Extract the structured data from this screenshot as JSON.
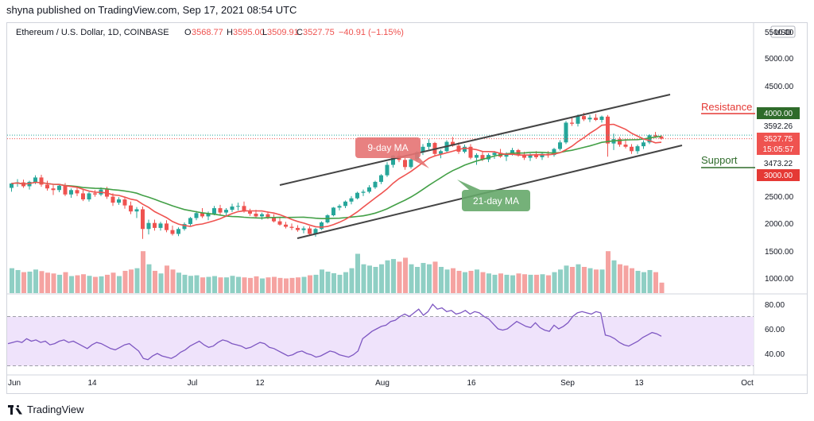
{
  "header": {
    "published_line": "shyna published on TradingView.com, Sep 17, 2021 08:54 UTC"
  },
  "footer": {
    "brand": "TradingView"
  },
  "colors": {
    "up": "#26a69a",
    "down": "#ef5350",
    "up_vol": "#8fcfc4",
    "down_vol": "#f5a3a1",
    "ma9": "#ef5350",
    "ma21": "#43a047",
    "rsi": "#7e57c2",
    "rsi_band": "#efe3fb",
    "channel": "#444444",
    "resistance_tag": "#2e6b2a",
    "support_tag": "#e53935"
  },
  "chart_data": {
    "type": "candlestick",
    "legend": {
      "symbol": "Ethereum / U.S. Dollar, 1D, COINBASE",
      "open_label": "O",
      "open": "3568.77",
      "high_label": "H",
      "high": "3595.00",
      "low_label": "L",
      "low": "3509.91",
      "close_label": "C",
      "close": "3527.75",
      "change": "−40.91 (−1.15%)"
    },
    "currency_button": "USD",
    "price_axis": {
      "ticks": [
        "4500.00",
        "4000.00",
        "3000.00",
        "2500.00",
        "2000.00",
        "1500.00",
        "1000.00"
      ],
      "top_tick": "5000.00",
      "clipped_top_tick": "5500.00"
    },
    "price_tags": {
      "resistance": "4000.00",
      "last_close": "3592.26",
      "current": "3527.75",
      "countdown": "15:05:57",
      "support_level": "3473.22",
      "support": "3000.00"
    },
    "time_axis": [
      "Jun",
      "14",
      "Jul",
      "12",
      "Aug",
      "16",
      "Sep",
      "13",
      "Oct"
    ],
    "annotations": {
      "ma9": "9-day MA",
      "ma21": "21-day MA",
      "resistance": "Resistance",
      "support": "Support"
    },
    "rsi": {
      "ticks": [
        "80.00",
        "60.00",
        "40.00"
      ],
      "upper": 70,
      "lower": 30,
      "values": [
        48,
        49,
        50,
        49,
        52,
        50,
        51,
        49,
        50,
        47,
        48,
        50,
        51,
        49,
        50,
        48,
        46,
        44,
        47,
        49,
        48,
        46,
        44,
        43,
        45,
        47,
        48,
        45,
        42,
        36,
        35,
        38,
        40,
        38,
        37,
        36,
        38,
        41,
        43,
        46,
        48,
        50,
        47,
        45,
        46,
        49,
        51,
        50,
        48,
        47,
        46,
        44,
        45,
        47,
        49,
        48,
        45,
        44,
        42,
        40,
        38,
        39,
        41,
        42,
        40,
        39,
        37,
        38,
        40,
        42,
        41,
        39,
        38,
        37,
        39,
        42,
        52,
        55,
        58,
        60,
        62,
        63,
        66,
        67,
        70,
        72,
        70,
        73,
        76,
        71,
        74,
        80,
        76,
        77,
        74,
        75,
        72,
        73,
        75,
        72,
        74,
        73,
        70,
        68,
        64,
        60,
        59,
        60,
        63,
        66,
        64,
        62,
        61,
        65,
        61,
        59,
        58,
        63,
        60,
        62,
        65,
        70,
        73,
        74,
        73,
        72,
        74,
        73,
        55,
        54,
        52,
        49,
        47,
        46,
        48,
        50,
        53,
        55,
        57,
        56,
        54
      ]
    },
    "ohlcv": [
      [
        2630,
        2720,
        2560,
        2710,
        9.5
      ],
      [
        2710,
        2790,
        2650,
        2730,
        8.8
      ],
      [
        2730,
        2780,
        2630,
        2660,
        8.0
      ],
      [
        2660,
        2760,
        2600,
        2740,
        8.2
      ],
      [
        2740,
        2860,
        2700,
        2820,
        9.0
      ],
      [
        2820,
        2870,
        2650,
        2690,
        8.4
      ],
      [
        2690,
        2760,
        2580,
        2620,
        7.8
      ],
      [
        2620,
        2680,
        2500,
        2590,
        7.5
      ],
      [
        2590,
        2700,
        2550,
        2670,
        7.0
      ],
      [
        2670,
        2720,
        2480,
        2510,
        8.0
      ],
      [
        2510,
        2620,
        2450,
        2590,
        6.5
      ],
      [
        2590,
        2650,
        2480,
        2530,
        6.8
      ],
      [
        2530,
        2600,
        2390,
        2420,
        7.2
      ],
      [
        2420,
        2560,
        2380,
        2530,
        6.6
      ],
      [
        2530,
        2590,
        2470,
        2510,
        6.2
      ],
      [
        2510,
        2640,
        2480,
        2600,
        6.4
      ],
      [
        2600,
        2650,
        2430,
        2470,
        7.0
      ],
      [
        2470,
        2530,
        2300,
        2360,
        7.8
      ],
      [
        2360,
        2460,
        2320,
        2420,
        6.5
      ],
      [
        2420,
        2460,
        2250,
        2310,
        8.5
      ],
      [
        2310,
        2380,
        2150,
        2200,
        9.0
      ],
      [
        2200,
        2280,
        2080,
        2240,
        9.5
      ],
      [
        2240,
        2290,
        1700,
        1880,
        16.0
      ],
      [
        1880,
        2050,
        1780,
        1990,
        11.0
      ],
      [
        1990,
        2050,
        1850,
        1900,
        8.5
      ],
      [
        1900,
        2010,
        1850,
        1980,
        7.5
      ],
      [
        1980,
        2040,
        1820,
        1860,
        10.5
      ],
      [
        1860,
        1940,
        1760,
        1790,
        9.0
      ],
      [
        1790,
        1910,
        1750,
        1880,
        7.8
      ],
      [
        1880,
        2000,
        1850,
        1970,
        7.0
      ],
      [
        1970,
        2100,
        1940,
        2080,
        6.6
      ],
      [
        2080,
        2210,
        2040,
        2170,
        6.8
      ],
      [
        2170,
        2260,
        2080,
        2110,
        6.0
      ],
      [
        2110,
        2200,
        2040,
        2160,
        6.2
      ],
      [
        2160,
        2300,
        2130,
        2260,
        6.5
      ],
      [
        2260,
        2320,
        2140,
        2180,
        6.0
      ],
      [
        2180,
        2260,
        2100,
        2230,
        6.0
      ],
      [
        2230,
        2340,
        2190,
        2290,
        6.6
      ],
      [
        2290,
        2360,
        2220,
        2300,
        6.2
      ],
      [
        2300,
        2380,
        2180,
        2200,
        6.0
      ],
      [
        2200,
        2250,
        2120,
        2160,
        5.8
      ],
      [
        2160,
        2230,
        2090,
        2110,
        6.4
      ],
      [
        2110,
        2180,
        2050,
        2150,
        5.6
      ],
      [
        2150,
        2200,
        2060,
        2080,
        6.0
      ],
      [
        2080,
        2150,
        2000,
        2020,
        6.2
      ],
      [
        2020,
        2080,
        1940,
        1960,
        5.8
      ],
      [
        1960,
        2010,
        1890,
        1920,
        5.6
      ],
      [
        1920,
        1980,
        1860,
        1900,
        5.8
      ],
      [
        1900,
        1950,
        1830,
        1860,
        6.0
      ],
      [
        1860,
        1930,
        1800,
        1890,
        6.2
      ],
      [
        1890,
        1930,
        1760,
        1790,
        6.8
      ],
      [
        1790,
        1900,
        1740,
        1880,
        7.0
      ],
      [
        1880,
        2020,
        1860,
        2000,
        9.0
      ],
      [
        2000,
        2150,
        1980,
        2130,
        8.2
      ],
      [
        2130,
        2280,
        2110,
        2270,
        7.6
      ],
      [
        2270,
        2330,
        2220,
        2300,
        7.0
      ],
      [
        2300,
        2400,
        2260,
        2380,
        8.0
      ],
      [
        2380,
        2480,
        2330,
        2440,
        9.5
      ],
      [
        2440,
        2560,
        2420,
        2540,
        15.0
      ],
      [
        2540,
        2600,
        2480,
        2560,
        11.0
      ],
      [
        2560,
        2680,
        2530,
        2640,
        10.5
      ],
      [
        2640,
        2760,
        2610,
        2740,
        10.0
      ],
      [
        2740,
        2880,
        2700,
        2860,
        11.0
      ],
      [
        2860,
        3100,
        2830,
        3050,
        12.5
      ],
      [
        3050,
        3230,
        3000,
        3220,
        13.0
      ],
      [
        3220,
        3300,
        3100,
        3140,
        12.0
      ],
      [
        3140,
        3180,
        2960,
        3010,
        13.5
      ],
      [
        3010,
        3180,
        2980,
        3150,
        11.0
      ],
      [
        3150,
        3300,
        3110,
        3280,
        10.0
      ],
      [
        3280,
        3430,
        3230,
        3380,
        11.5
      ],
      [
        3380,
        3520,
        3330,
        3450,
        11.0
      ],
      [
        3450,
        3470,
        3200,
        3250,
        12.0
      ],
      [
        3250,
        3330,
        3170,
        3300,
        10.0
      ],
      [
        3300,
        3500,
        3280,
        3470,
        9.0
      ],
      [
        3470,
        3560,
        3380,
        3400,
        9.5
      ],
      [
        3400,
        3460,
        3250,
        3290,
        8.5
      ],
      [
        3290,
        3420,
        3260,
        3380,
        8.0
      ],
      [
        3380,
        3430,
        3150,
        3180,
        8.5
      ],
      [
        3180,
        3260,
        3050,
        3230,
        9.0
      ],
      [
        3230,
        3300,
        3120,
        3150,
        8.0
      ],
      [
        3150,
        3260,
        3100,
        3230,
        7.5
      ],
      [
        3230,
        3300,
        3160,
        3270,
        7.0
      ],
      [
        3270,
        3340,
        3180,
        3200,
        7.5
      ],
      [
        3200,
        3280,
        3120,
        3250,
        7.0
      ],
      [
        3250,
        3360,
        3220,
        3320,
        6.8
      ],
      [
        3320,
        3340,
        3200,
        3230,
        7.5
      ],
      [
        3230,
        3290,
        3140,
        3180,
        7.2
      ],
      [
        3180,
        3260,
        3120,
        3240,
        7.0
      ],
      [
        3240,
        3300,
        3160,
        3190,
        7.0
      ],
      [
        3190,
        3270,
        3140,
        3250,
        7.2
      ],
      [
        3250,
        3300,
        3180,
        3230,
        6.8
      ],
      [
        3230,
        3360,
        3200,
        3340,
        8.0
      ],
      [
        3340,
        3500,
        3310,
        3460,
        9.0
      ],
      [
        3460,
        3850,
        3430,
        3820,
        10.5
      ],
      [
        3820,
        3920,
        3760,
        3800,
        10.0
      ],
      [
        3800,
        3970,
        3750,
        3940,
        11.0
      ],
      [
        3940,
        4000,
        3850,
        3880,
        10.0
      ],
      [
        3880,
        3960,
        3830,
        3910,
        9.5
      ],
      [
        3910,
        3980,
        3850,
        3870,
        9.0
      ],
      [
        3870,
        3950,
        3820,
        3930,
        9.0
      ],
      [
        3930,
        3960,
        3200,
        3440,
        16.0
      ],
      [
        3440,
        3620,
        3320,
        3520,
        12.5
      ],
      [
        3520,
        3560,
        3380,
        3420,
        11.0
      ],
      [
        3420,
        3520,
        3350,
        3380,
        10.5
      ],
      [
        3380,
        3430,
        3250,
        3300,
        9.5
      ],
      [
        3300,
        3420,
        3250,
        3390,
        8.5
      ],
      [
        3390,
        3500,
        3340,
        3460,
        8.0
      ],
      [
        3460,
        3610,
        3430,
        3590,
        8.8
      ],
      [
        3590,
        3650,
        3540,
        3568,
        8.0
      ],
      [
        3568,
        3595,
        3509,
        3528,
        4.0
      ]
    ]
  }
}
